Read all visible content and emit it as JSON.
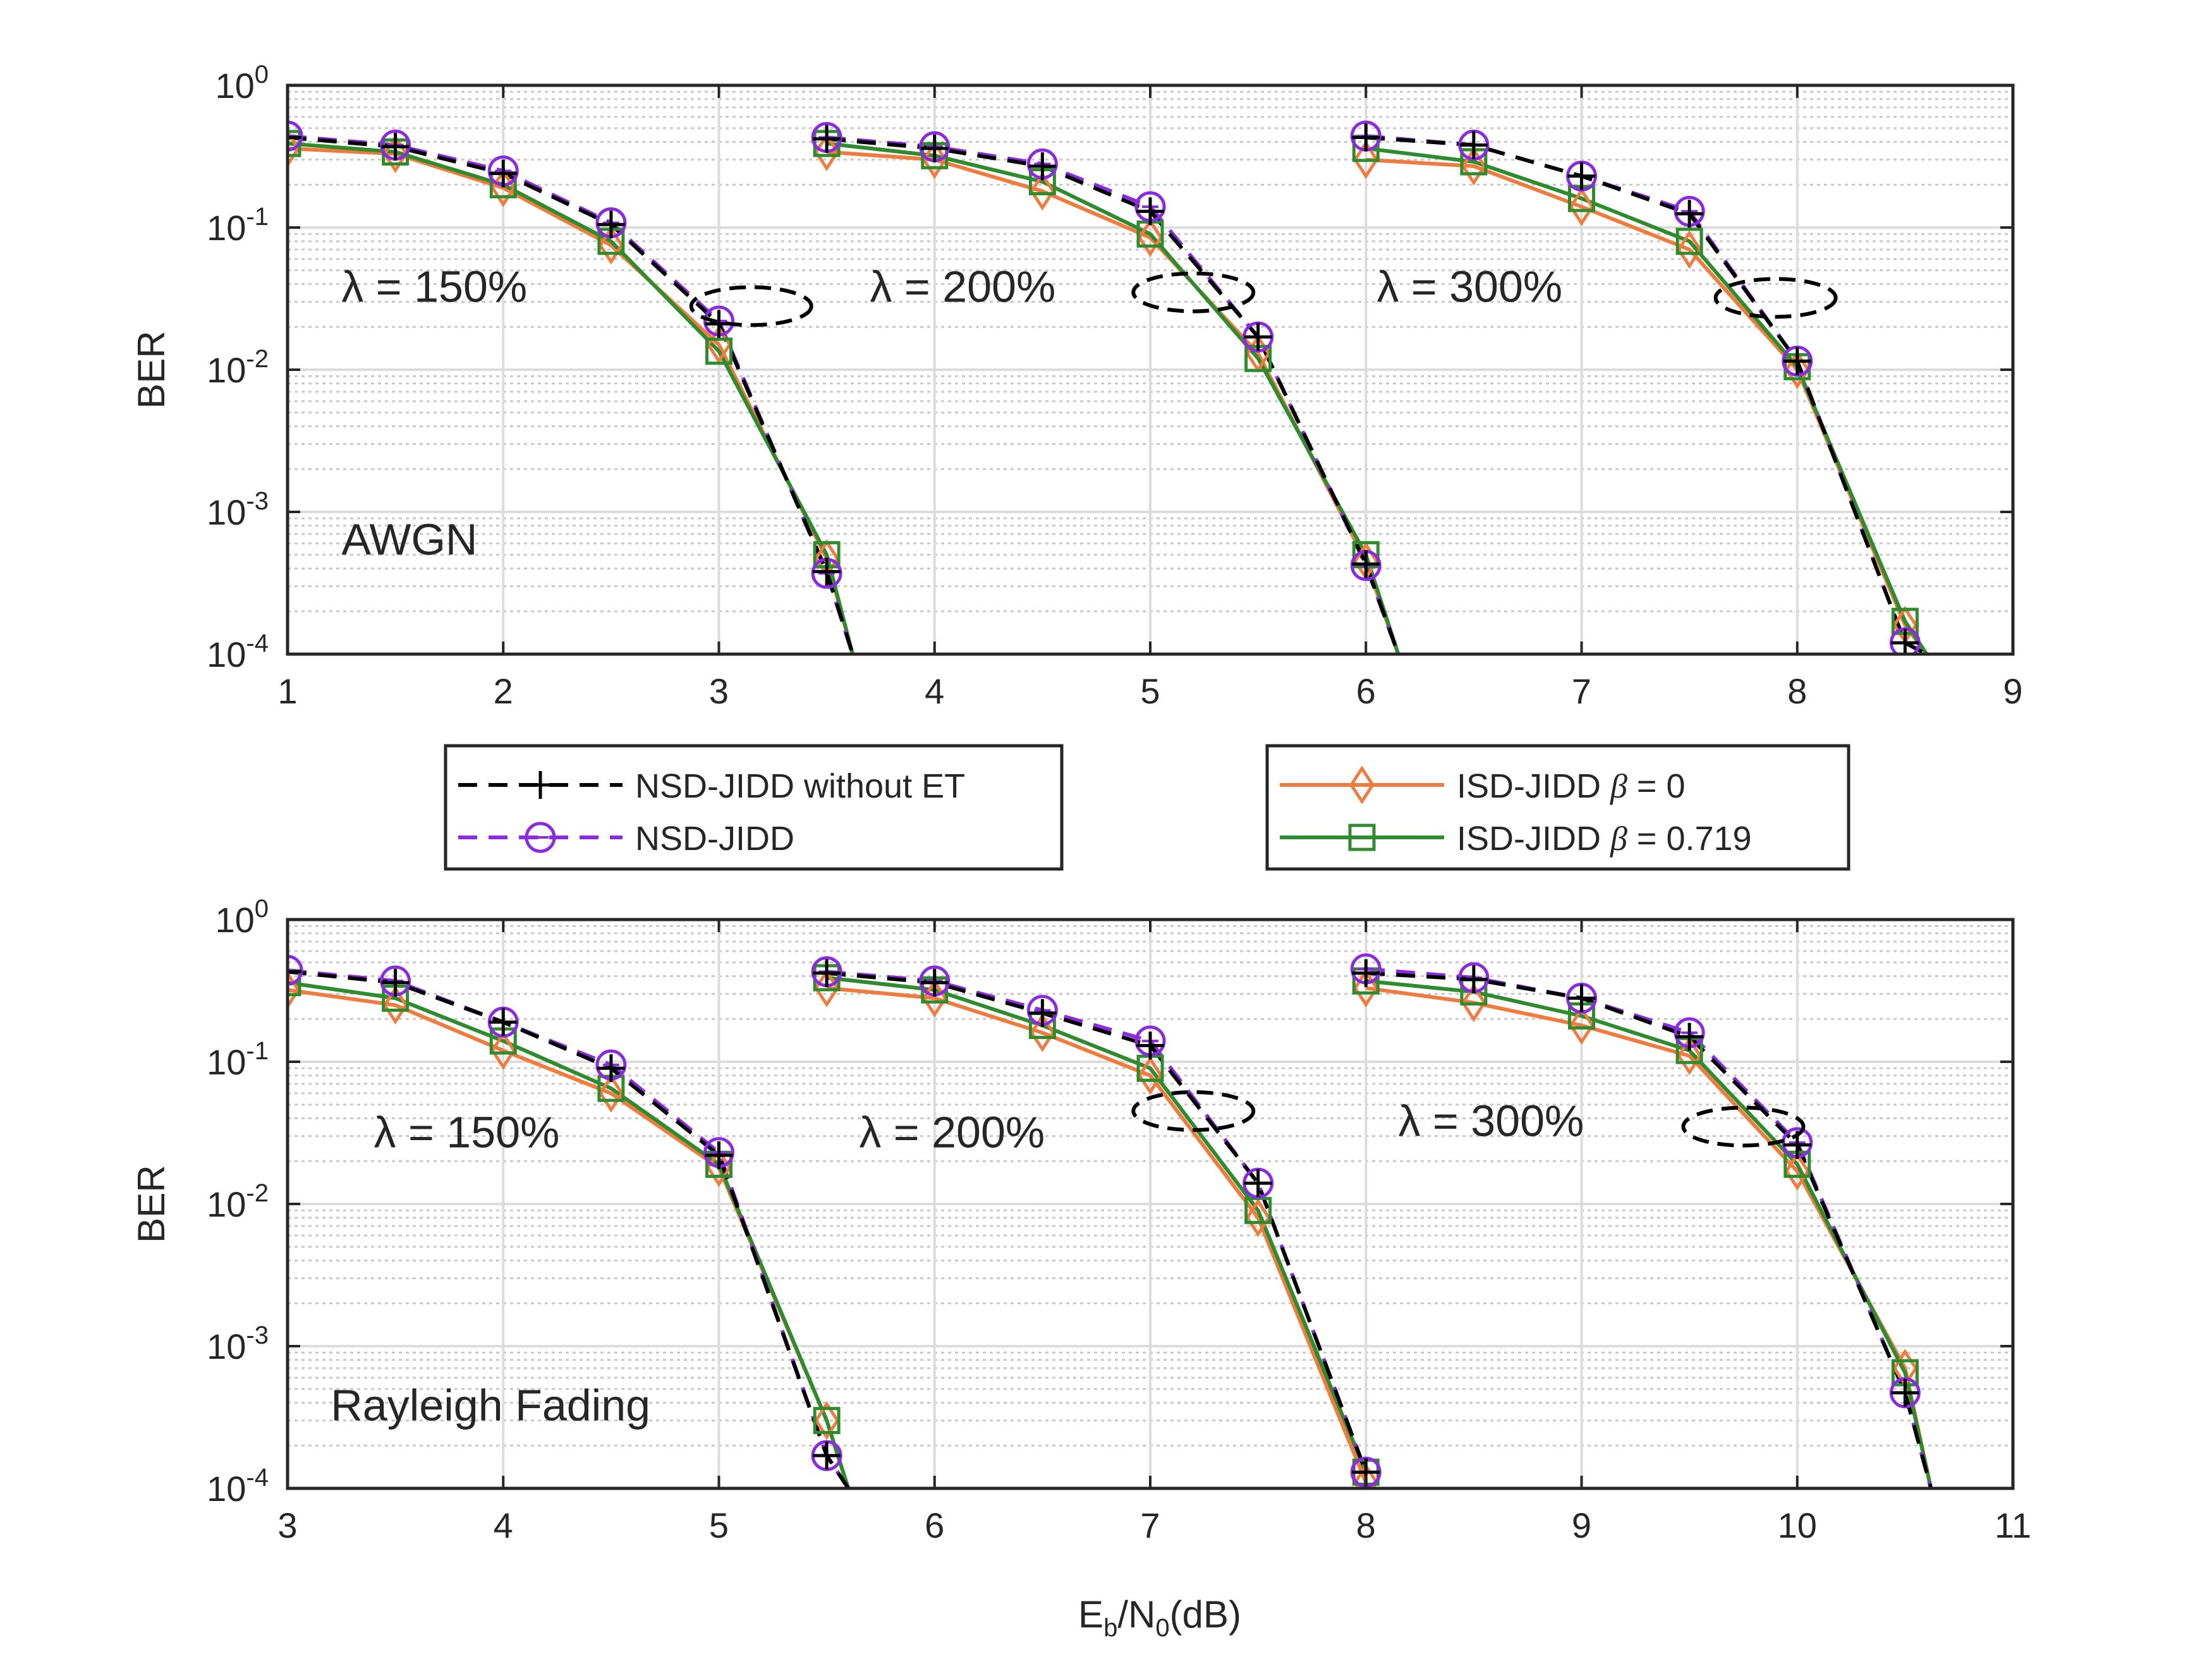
{
  "colors": {
    "nsd_without_et": "#000000",
    "nsd_jidd": "#8a2be2",
    "isd_beta0": "#f07b3f",
    "isd_beta0719": "#2e8b2e"
  },
  "chart_data": [
    {
      "type": "line",
      "yscale": "log",
      "ylabel": "BER",
      "xlabel": "",
      "xlim": [
        1,
        9
      ],
      "ylim": [
        0.0001,
        1
      ],
      "xticks": [
        "1",
        "2",
        "3",
        "4",
        "5",
        "6",
        "7",
        "8",
        "9"
      ],
      "yticks": [
        {
          "base": "10",
          "exp": "0"
        },
        {
          "base": "10",
          "exp": "-1"
        },
        {
          "base": "10",
          "exp": "-2"
        },
        {
          "base": "10",
          "exp": "-3"
        },
        {
          "base": "10",
          "exp": "-4"
        }
      ],
      "grid": true,
      "annotations": [
        {
          "text": "λ = 150%",
          "x": 1.25,
          "y": 0.03
        },
        {
          "text": "λ = 200%",
          "x": 3.7,
          "y": 0.03
        },
        {
          "text": "λ = 300%",
          "x": 6.05,
          "y": 0.03
        },
        {
          "text": "AWGN",
          "x": 1.25,
          "y": 0.0005
        }
      ],
      "ellipses": [
        {
          "cx": 3.15,
          "cy": 0.028
        },
        {
          "cx": 5.2,
          "cy": 0.035
        },
        {
          "cx": 7.9,
          "cy": 0.032
        }
      ],
      "groups": [
        {
          "x": [
            1,
            1.5,
            2,
            2.5,
            3,
            3.5,
            3.62
          ],
          "series": {
            "nsd_without_et": [
              0.43,
              0.37,
              0.24,
              0.105,
              0.021,
              0.00038,
              0.0001
            ],
            "nsd_jidd": [
              0.44,
              0.38,
              0.25,
              0.108,
              0.022,
              0.00037,
              0.0001
            ],
            "isd_beta0": [
              0.36,
              0.33,
              0.19,
              0.075,
              0.015,
              0.00047,
              0.0001
            ],
            "isd_beta0719": [
              0.39,
              0.34,
              0.2,
              0.08,
              0.0135,
              0.0005,
              0.0001
            ]
          }
        },
        {
          "x": [
            3.5,
            4,
            4.5,
            5,
            5.5,
            6,
            6.15
          ],
          "series": {
            "nsd_without_et": [
              0.42,
              0.36,
              0.27,
              0.13,
              0.017,
              0.00043,
              0.0001
            ],
            "nsd_jidd": [
              0.43,
              0.37,
              0.28,
              0.14,
              0.017,
              0.00042,
              0.0001
            ],
            "isd_beta0": [
              0.34,
              0.3,
              0.18,
              0.085,
              0.013,
              0.00045,
              0.0001
            ],
            "isd_beta0719": [
              0.39,
              0.32,
              0.21,
              0.09,
              0.012,
              0.0005,
              0.0001
            ]
          }
        },
        {
          "x": [
            6,
            6.5,
            7,
            7.5,
            8,
            8.5,
            8.6
          ],
          "series": {
            "nsd_without_et": [
              0.43,
              0.38,
              0.23,
              0.125,
              0.0115,
              0.00012,
              0.0001
            ],
            "nsd_jidd": [
              0.44,
              0.38,
              0.23,
              0.13,
              0.0115,
              0.00012,
              0.0001
            ],
            "isd_beta0": [
              0.3,
              0.27,
              0.14,
              0.07,
              0.01,
              0.00016,
              0.0001
            ],
            "isd_beta0719": [
              0.36,
              0.29,
              0.16,
              0.08,
              0.0105,
              0.00017,
              0.0001
            ]
          }
        }
      ]
    },
    {
      "type": "line",
      "yscale": "log",
      "ylabel": "BER",
      "xlabel_main": "E",
      "xlabel_sub1": "b",
      "xlabel_mid": "/N",
      "xlabel_sub2": "0",
      "xlabel_end": "(dB)",
      "xlim": [
        3,
        11
      ],
      "ylim": [
        0.0001,
        1
      ],
      "xticks": [
        "3",
        "4",
        "5",
        "6",
        "7",
        "8",
        "9",
        "10",
        "11"
      ],
      "yticks": [
        {
          "base": "10",
          "exp": "0"
        },
        {
          "base": "10",
          "exp": "-1"
        },
        {
          "base": "10",
          "exp": "-2"
        },
        {
          "base": "10",
          "exp": "-3"
        },
        {
          "base": "10",
          "exp": "-4"
        }
      ],
      "grid": true,
      "annotations": [
        {
          "text": "λ = 150%",
          "x": 3.4,
          "y": 0.025
        },
        {
          "text": "λ = 200%",
          "x": 5.65,
          "y": 0.025
        },
        {
          "text": "λ = 300%",
          "x": 8.15,
          "y": 0.03
        },
        {
          "text": "Rayleigh Fading",
          "x": 3.2,
          "y": 0.0003
        }
      ],
      "ellipses": [
        {
          "cx": 7.2,
          "cy": 0.045
        },
        {
          "cx": 9.75,
          "cy": 0.035
        }
      ],
      "groups": [
        {
          "x": [
            3,
            3.5,
            4,
            4.5,
            5,
            5.5,
            5.6
          ],
          "series": {
            "nsd_without_et": [
              0.43,
              0.36,
              0.19,
              0.09,
              0.022,
              0.00017,
              0.0001
            ],
            "nsd_jidd": [
              0.44,
              0.37,
              0.19,
              0.095,
              0.023,
              0.00017,
              0.0001
            ],
            "isd_beta0": [
              0.32,
              0.25,
              0.12,
              0.06,
              0.018,
              0.0003,
              0.0001
            ],
            "isd_beta0719": [
              0.36,
              0.28,
              0.14,
              0.065,
              0.019,
              0.0003,
              0.0001
            ]
          }
        },
        {
          "x": [
            5.5,
            6,
            6.5,
            7,
            7.5,
            8
          ],
          "series": {
            "nsd_without_et": [
              0.42,
              0.36,
              0.22,
              0.13,
              0.014,
              0.00013
            ],
            "nsd_jidd": [
              0.43,
              0.37,
              0.23,
              0.14,
              0.014,
              0.00013
            ],
            "isd_beta0": [
              0.33,
              0.28,
              0.16,
              0.08,
              0.008,
              0.00011
            ],
            "isd_beta0719": [
              0.39,
              0.32,
              0.18,
              0.09,
              0.009,
              0.00013
            ]
          }
        },
        {
          "x": [
            8,
            8.5,
            9,
            9.5,
            10,
            10.5,
            10.62
          ],
          "series": {
            "nsd_without_et": [
              0.42,
              0.38,
              0.28,
              0.15,
              0.026,
              0.00047,
              0.0001
            ],
            "nsd_jidd": [
              0.45,
              0.39,
              0.28,
              0.16,
              0.027,
              0.00047,
              0.0001
            ],
            "isd_beta0": [
              0.33,
              0.26,
              0.18,
              0.11,
              0.017,
              0.0007,
              0.0001
            ],
            "isd_beta0719": [
              0.37,
              0.31,
              0.21,
              0.12,
              0.019,
              0.00065,
              0.0001
            ]
          }
        }
      ]
    }
  ],
  "legend": {
    "left": [
      {
        "key": "nsd_without_et",
        "label": "NSD-JIDD without ET"
      },
      {
        "key": "nsd_jidd",
        "label": "NSD-JIDD"
      }
    ],
    "right": [
      {
        "key": "isd_beta0",
        "label_prefix": "ISD-JIDD ",
        "greek": "β",
        "label_suffix": " = 0"
      },
      {
        "key": "isd_beta0719",
        "label_prefix": "ISD-JIDD ",
        "greek": "β",
        "label_suffix": " = 0.719"
      }
    ]
  }
}
